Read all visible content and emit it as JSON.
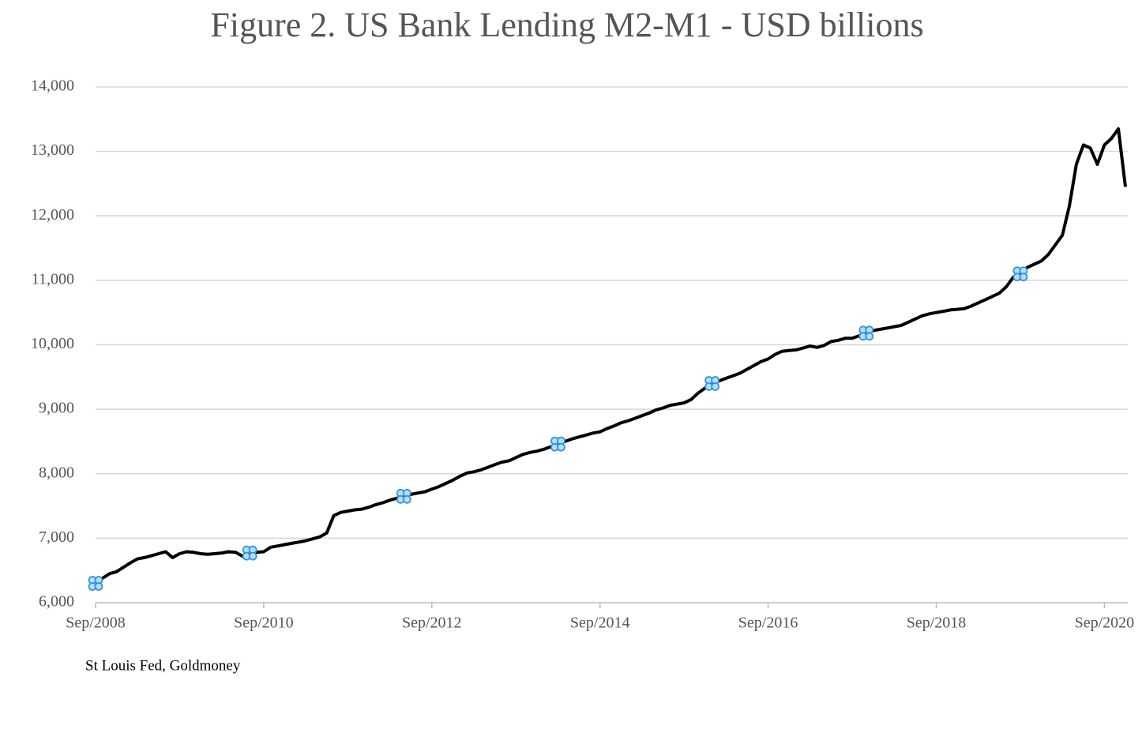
{
  "chart_data": {
    "type": "line",
    "title": "Figure 2. US Bank Lending M2-M1 - USD billions",
    "source": "St Louis Fed, Goldmoney",
    "x": [
      "2008-09",
      "2008-10",
      "2008-11",
      "2008-12",
      "2009-01",
      "2009-02",
      "2009-03",
      "2009-04",
      "2009-05",
      "2009-06",
      "2009-07",
      "2009-08",
      "2009-09",
      "2009-10",
      "2009-11",
      "2009-12",
      "2010-01",
      "2010-02",
      "2010-03",
      "2010-04",
      "2010-05",
      "2010-06",
      "2010-07",
      "2010-08",
      "2010-09",
      "2010-10",
      "2010-11",
      "2010-12",
      "2011-01",
      "2011-02",
      "2011-03",
      "2011-04",
      "2011-05",
      "2011-06",
      "2011-07",
      "2011-08",
      "2011-09",
      "2011-10",
      "2011-11",
      "2011-12",
      "2012-01",
      "2012-02",
      "2012-03",
      "2012-04",
      "2012-05",
      "2012-06",
      "2012-07",
      "2012-08",
      "2012-09",
      "2012-10",
      "2012-11",
      "2012-12",
      "2013-01",
      "2013-02",
      "2013-03",
      "2013-04",
      "2013-05",
      "2013-06",
      "2013-07",
      "2013-08",
      "2013-09",
      "2013-10",
      "2013-11",
      "2013-12",
      "2014-01",
      "2014-02",
      "2014-03",
      "2014-04",
      "2014-05",
      "2014-06",
      "2014-07",
      "2014-08",
      "2014-09",
      "2014-10",
      "2014-11",
      "2014-12",
      "2015-01",
      "2015-02",
      "2015-03",
      "2015-04",
      "2015-05",
      "2015-06",
      "2015-07",
      "2015-08",
      "2015-09",
      "2015-10",
      "2015-11",
      "2015-12",
      "2016-01",
      "2016-02",
      "2016-03",
      "2016-04",
      "2016-05",
      "2016-06",
      "2016-07",
      "2016-08",
      "2016-09",
      "2016-10",
      "2016-11",
      "2016-12",
      "2017-01",
      "2017-02",
      "2017-03",
      "2017-04",
      "2017-05",
      "2017-06",
      "2017-07",
      "2017-08",
      "2017-09",
      "2017-10",
      "2017-11",
      "2017-12",
      "2018-01",
      "2018-02",
      "2018-03",
      "2018-04",
      "2018-05",
      "2018-06",
      "2018-07",
      "2018-08",
      "2018-09",
      "2018-10",
      "2018-11",
      "2018-12",
      "2019-01",
      "2019-02",
      "2019-03",
      "2019-04",
      "2019-05",
      "2019-06",
      "2019-07",
      "2019-08",
      "2019-09",
      "2019-10",
      "2019-11",
      "2019-12",
      "2020-01",
      "2020-02",
      "2020-03",
      "2020-04",
      "2020-05",
      "2020-06",
      "2020-07",
      "2020-08",
      "2020-09",
      "2020-10",
      "2020-11",
      "2020-12"
    ],
    "values": [
      6300,
      6380,
      6450,
      6480,
      6550,
      6620,
      6680,
      6700,
      6730,
      6760,
      6790,
      6700,
      6760,
      6790,
      6780,
      6760,
      6750,
      6760,
      6770,
      6790,
      6780,
      6720,
      6770,
      6780,
      6790,
      6860,
      6880,
      6900,
      6920,
      6940,
      6960,
      6990,
      7020,
      7080,
      7350,
      7400,
      7420,
      7440,
      7450,
      7480,
      7520,
      7550,
      7590,
      7620,
      7650,
      7680,
      7700,
      7720,
      7760,
      7800,
      7850,
      7900,
      7960,
      8010,
      8030,
      8060,
      8100,
      8140,
      8180,
      8200,
      8250,
      8300,
      8330,
      8350,
      8380,
      8420,
      8460,
      8500,
      8540,
      8570,
      8600,
      8630,
      8650,
      8700,
      8740,
      8790,
      8820,
      8860,
      8900,
      8940,
      8990,
      9020,
      9060,
      9080,
      9100,
      9150,
      9250,
      9330,
      9400,
      9440,
      9480,
      9520,
      9560,
      9620,
      9680,
      9740,
      9780,
      9850,
      9900,
      9910,
      9920,
      9950,
      9980,
      9960,
      9990,
      10050,
      10070,
      10100,
      10100,
      10140,
      10180,
      10220,
      10240,
      10260,
      10280,
      10300,
      10350,
      10400,
      10450,
      10480,
      10500,
      10520,
      10540,
      10550,
      10560,
      10600,
      10650,
      10700,
      10750,
      10800,
      10900,
      11050,
      11100,
      11200,
      11250,
      11300,
      11400,
      11550,
      11700,
      12150,
      12800,
      13100,
      13050,
      12800,
      13100,
      13200,
      13350,
      12450
    ],
    "color": "#000000",
    "markers": {
      "color": "#3b8fd8",
      "every": 22
    },
    "xlim": [
      "2008-09",
      "2020-12"
    ],
    "xticks": [
      {
        "value": "2008-09",
        "label": "Sep/2008"
      },
      {
        "value": "2010-09",
        "label": "Sep/2010"
      },
      {
        "value": "2012-09",
        "label": "Sep/2012"
      },
      {
        "value": "2014-09",
        "label": "Sep/2014"
      },
      {
        "value": "2016-09",
        "label": "Sep/2016"
      },
      {
        "value": "2018-09",
        "label": "Sep/2018"
      },
      {
        "value": "2020-09",
        "label": "Sep/2020"
      }
    ],
    "ylim": [
      6000,
      14000
    ],
    "yticks": [
      {
        "value": 6000,
        "label": "6,000"
      },
      {
        "value": 7000,
        "label": "7,000"
      },
      {
        "value": 8000,
        "label": "8,000"
      },
      {
        "value": 9000,
        "label": "9,000"
      },
      {
        "value": 10000,
        "label": "10,000"
      },
      {
        "value": 11000,
        "label": "11,000"
      },
      {
        "value": 12000,
        "label": "12,000"
      },
      {
        "value": 13000,
        "label": "13,000"
      },
      {
        "value": 14000,
        "label": "14,000"
      }
    ],
    "grid": true
  }
}
